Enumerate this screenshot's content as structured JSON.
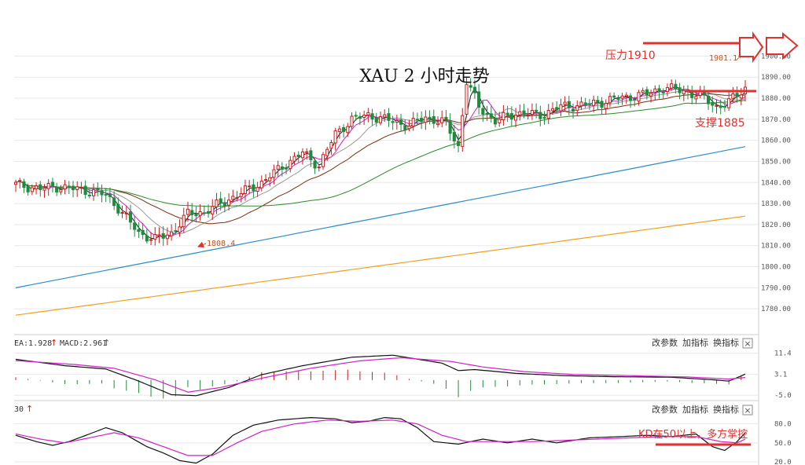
{
  "chart_data": {
    "type": "candlestick",
    "title": "XAU 2 小时走势",
    "colors": {
      "up": "#c81e1e",
      "down": "#1e8c3c",
      "grid": "#e8e8e8",
      "axis_text": "#555555"
    },
    "main": {
      "ylim": [
        1770,
        1905
      ],
      "y_ticks": [
        "1780.00",
        "1790.00",
        "1800.00",
        "1810.00",
        "1820.00",
        "1830.00",
        "1840.00",
        "1850.00",
        "1860.00",
        "1870.00",
        "1880.00",
        "1890.00",
        "1900.00"
      ],
      "low_label": "1808.4",
      "high_label": "1901.1",
      "resistance": {
        "label": "压力1910",
        "value": 1901
      },
      "support": {
        "label": "支撑1885",
        "value": 1883
      },
      "anchors": [
        [
          0,
          1839
        ],
        [
          6,
          1837
        ],
        [
          10,
          1838
        ],
        [
          14,
          1837
        ],
        [
          18,
          1836
        ],
        [
          22,
          1834
        ],
        [
          25,
          1828
        ],
        [
          30,
          1816
        ],
        [
          34,
          1813
        ],
        [
          38,
          1816
        ],
        [
          42,
          1825
        ],
        [
          46,
          1826
        ],
        [
          50,
          1830
        ],
        [
          56,
          1836
        ],
        [
          60,
          1840
        ],
        [
          66,
          1849
        ],
        [
          70,
          1854
        ],
        [
          74,
          1848
        ],
        [
          78,
          1863
        ],
        [
          82,
          1870
        ],
        [
          86,
          1872
        ],
        [
          90,
          1870
        ],
        [
          96,
          1867
        ],
        [
          100,
          1871
        ],
        [
          105,
          1868
        ],
        [
          108,
          1857
        ],
        [
          110,
          1888
        ],
        [
          113,
          1876
        ],
        [
          117,
          1869
        ],
        [
          122,
          1873
        ],
        [
          128,
          1872
        ],
        [
          133,
          1876
        ],
        [
          140,
          1877
        ],
        [
          147,
          1880
        ],
        [
          154,
          1882
        ],
        [
          158,
          1885
        ],
        [
          164,
          1883
        ],
        [
          168,
          1880
        ],
        [
          171,
          1876
        ],
        [
          174,
          1878
        ],
        [
          178,
          1885
        ]
      ],
      "ma_lines": [
        {
          "period": 3,
          "color": "#1a1a1a"
        },
        {
          "period": 6,
          "color": "#d020c8"
        },
        {
          "period": 12,
          "color": "#999999"
        },
        {
          "period": 24,
          "color": "#7a2d12"
        },
        {
          "period": 55,
          "color": "#2a8a2a"
        }
      ],
      "long_mas": [
        {
          "name": "blue",
          "color": "#2b8cc8",
          "points": [
            [
              0,
              1790
            ],
            [
              178,
              1857
            ]
          ]
        },
        {
          "name": "orange",
          "color": "#f0a020",
          "points": [
            [
              0,
              1777
            ],
            [
              178,
              1824
            ]
          ]
        }
      ]
    },
    "macd": {
      "label_left": "EA:1.928",
      "label_macd": "MACD:2.961",
      "y_ticks": [
        "11.4",
        "3.1",
        "-5.0"
      ],
      "ylim": [
        -6.5,
        12.5
      ],
      "dif": [
        [
          0,
          9.0
        ],
        [
          12,
          6.5
        ],
        [
          22,
          5.2
        ],
        [
          30,
          0.5
        ],
        [
          38,
          -4.8
        ],
        [
          44,
          -5.2
        ],
        [
          52,
          -2.0
        ],
        [
          60,
          3.0
        ],
        [
          70,
          6.5
        ],
        [
          82,
          9.8
        ],
        [
          92,
          10.6
        ],
        [
          104,
          7.5
        ],
        [
          108,
          4.6
        ],
        [
          112,
          5.0
        ],
        [
          122,
          3.5
        ],
        [
          134,
          2.6
        ],
        [
          146,
          2.2
        ],
        [
          160,
          2.0
        ],
        [
          170,
          1.0
        ],
        [
          174,
          0.5
        ],
        [
          178,
          3.2
        ]
      ],
      "dea": [
        [
          0,
          8.5
        ],
        [
          14,
          7.0
        ],
        [
          24,
          5.5
        ],
        [
          34,
          1.0
        ],
        [
          42,
          -3.8
        ],
        [
          50,
          -2.0
        ],
        [
          60,
          1.6
        ],
        [
          72,
          5.5
        ],
        [
          84,
          8.4
        ],
        [
          94,
          9.6
        ],
        [
          106,
          8.2
        ],
        [
          114,
          6.0
        ],
        [
          124,
          4.2
        ],
        [
          136,
          3.1
        ],
        [
          150,
          2.6
        ],
        [
          164,
          2.1
        ],
        [
          174,
          1.3
        ],
        [
          178,
          1.9
        ]
      ]
    },
    "kd": {
      "label_left": "30",
      "y_ticks": [
        "80.0",
        "50.0",
        "20.0"
      ],
      "ylim": [
        15,
        92
      ],
      "annotation": "KD在50以上，多方掌控",
      "k": [
        [
          0,
          62
        ],
        [
          5,
          52
        ],
        [
          9,
          46
        ],
        [
          13,
          52
        ],
        [
          18,
          64
        ],
        [
          22,
          74
        ],
        [
          26,
          66
        ],
        [
          32,
          44
        ],
        [
          36,
          34
        ],
        [
          40,
          22
        ],
        [
          44,
          18
        ],
        [
          48,
          32
        ],
        [
          53,
          62
        ],
        [
          58,
          78
        ],
        [
          64,
          86
        ],
        [
          72,
          90
        ],
        [
          78,
          88
        ],
        [
          82,
          82
        ],
        [
          86,
          84
        ],
        [
          90,
          90
        ],
        [
          94,
          88
        ],
        [
          98,
          74
        ],
        [
          102,
          52
        ],
        [
          108,
          48
        ],
        [
          114,
          56
        ],
        [
          120,
          50
        ],
        [
          126,
          56
        ],
        [
          132,
          50
        ],
        [
          140,
          58
        ],
        [
          148,
          60
        ],
        [
          154,
          62
        ],
        [
          160,
          60
        ],
        [
          166,
          64
        ],
        [
          170,
          44
        ],
        [
          173,
          38
        ],
        [
          176,
          52
        ],
        [
          178,
          66
        ]
      ],
      "d": [
        [
          0,
          64
        ],
        [
          6,
          56
        ],
        [
          12,
          50
        ],
        [
          18,
          58
        ],
        [
          24,
          66
        ],
        [
          30,
          58
        ],
        [
          36,
          44
        ],
        [
          42,
          30
        ],
        [
          48,
          30
        ],
        [
          54,
          50
        ],
        [
          60,
          68
        ],
        [
          68,
          80
        ],
        [
          76,
          86
        ],
        [
          84,
          84
        ],
        [
          92,
          86
        ],
        [
          98,
          80
        ],
        [
          104,
          62
        ],
        [
          110,
          52
        ],
        [
          118,
          52
        ],
        [
          126,
          52
        ],
        [
          134,
          54
        ],
        [
          142,
          56
        ],
        [
          150,
          58
        ],
        [
          158,
          60
        ],
        [
          166,
          60
        ],
        [
          172,
          52
        ],
        [
          176,
          50
        ],
        [
          178,
          56
        ]
      ]
    }
  },
  "toolbar": {
    "change_params": "改参数",
    "add_indicator": "加指标",
    "switch_indicator": "换指标",
    "close": "×"
  }
}
